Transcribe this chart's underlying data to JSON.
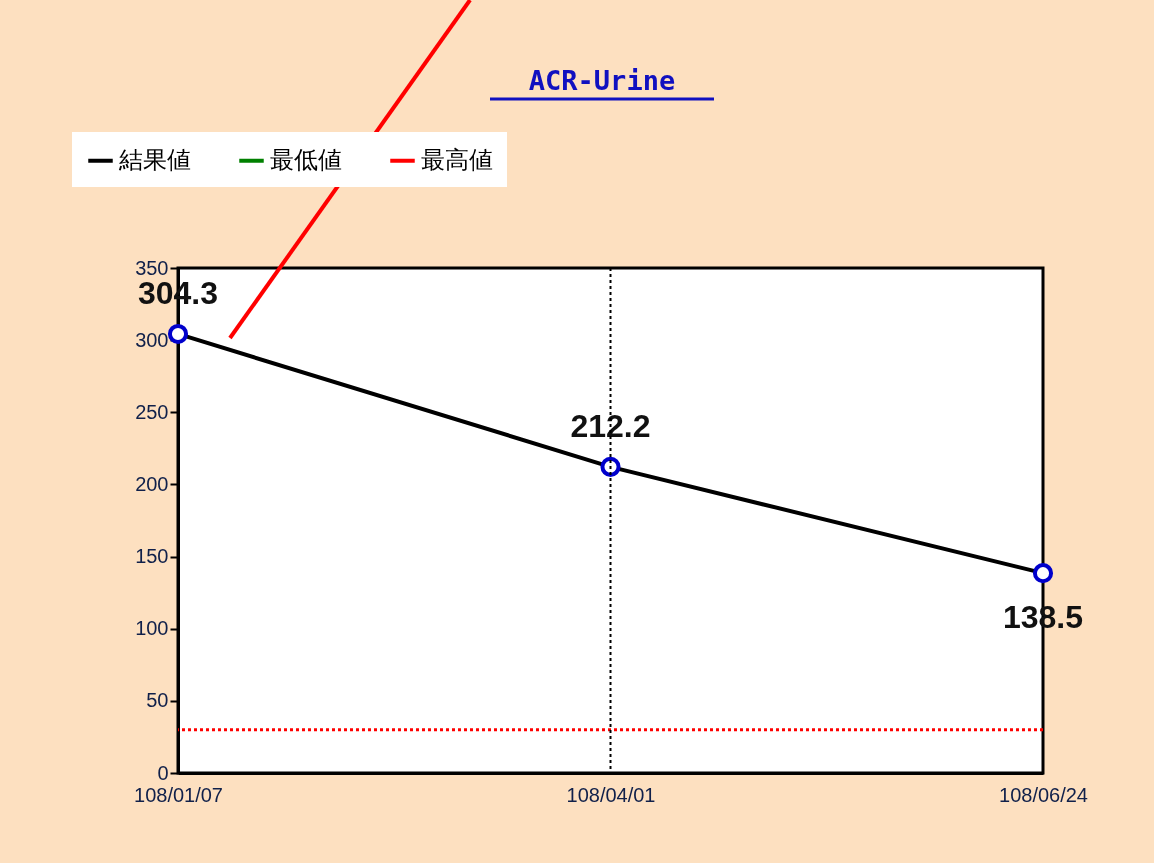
{
  "chart_data": {
    "type": "line",
    "title": "ACR-Urine",
    "categories": [
      "108/01/07",
      "108/04/01",
      "108/06/24"
    ],
    "series": [
      {
        "name": "結果値",
        "color": "#000000",
        "values": [
          304.3,
          212.2,
          138.5
        ]
      }
    ],
    "ylim": [
      0,
      350
    ],
    "yticks": [
      0,
      50,
      100,
      150,
      200,
      250,
      300,
      350
    ],
    "ref_lines": [
      {
        "axis": "y",
        "value": null,
        "label": "最低値",
        "color": "#008000",
        "line_style": "dotted"
      },
      {
        "axis": "y",
        "value": 30,
        "label": "最高値",
        "color": "#ff0000",
        "line_style": "dotted"
      },
      {
        "axis": "x",
        "value": "108/04/01",
        "color": "#000000",
        "line_style": "dotted"
      }
    ],
    "data_labels": true,
    "marker": "circle",
    "line_style": "solid",
    "grid": false,
    "legend": "top left"
  }
}
